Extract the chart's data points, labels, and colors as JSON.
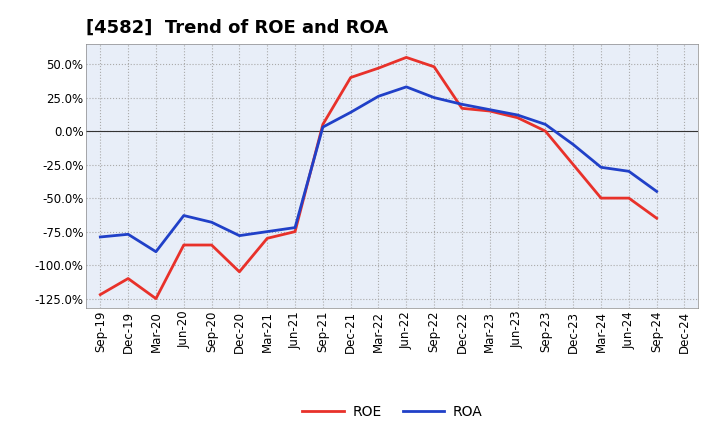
{
  "title": "[4582]  Trend of ROE and ROA",
  "x_labels": [
    "Sep-19",
    "Dec-19",
    "Mar-20",
    "Jun-20",
    "Sep-20",
    "Dec-20",
    "Mar-21",
    "Jun-21",
    "Sep-21",
    "Dec-21",
    "Mar-22",
    "Jun-22",
    "Sep-22",
    "Dec-22",
    "Mar-23",
    "Jun-23",
    "Sep-23",
    "Dec-23",
    "Mar-24",
    "Jun-24",
    "Sep-24",
    "Dec-24"
  ],
  "roe": [
    -122,
    -110,
    -125,
    -85,
    -85,
    -105,
    -80,
    -75,
    5,
    40,
    47,
    55,
    48,
    17,
    15,
    10,
    0,
    -25,
    -50,
    -50,
    -65,
    null
  ],
  "roa": [
    -79,
    -77,
    -90,
    -63,
    -68,
    -78,
    -75,
    -72,
    3,
    14,
    26,
    33,
    25,
    20,
    16,
    12,
    5,
    -10,
    -27,
    -30,
    -45,
    null
  ],
  "roe_color": "#e8312a",
  "roa_color": "#2040c8",
  "background_color": "#ffffff",
  "plot_bg_color": "#e8eef8",
  "grid_color": "#aaaaaa",
  "ylim": [
    -132,
    65
  ],
  "yticks": [
    -125,
    -100,
    -75,
    -50,
    -25,
    0,
    25,
    50
  ],
  "line_width": 2.0,
  "title_fontsize": 13,
  "legend_fontsize": 10,
  "tick_fontsize": 8.5
}
